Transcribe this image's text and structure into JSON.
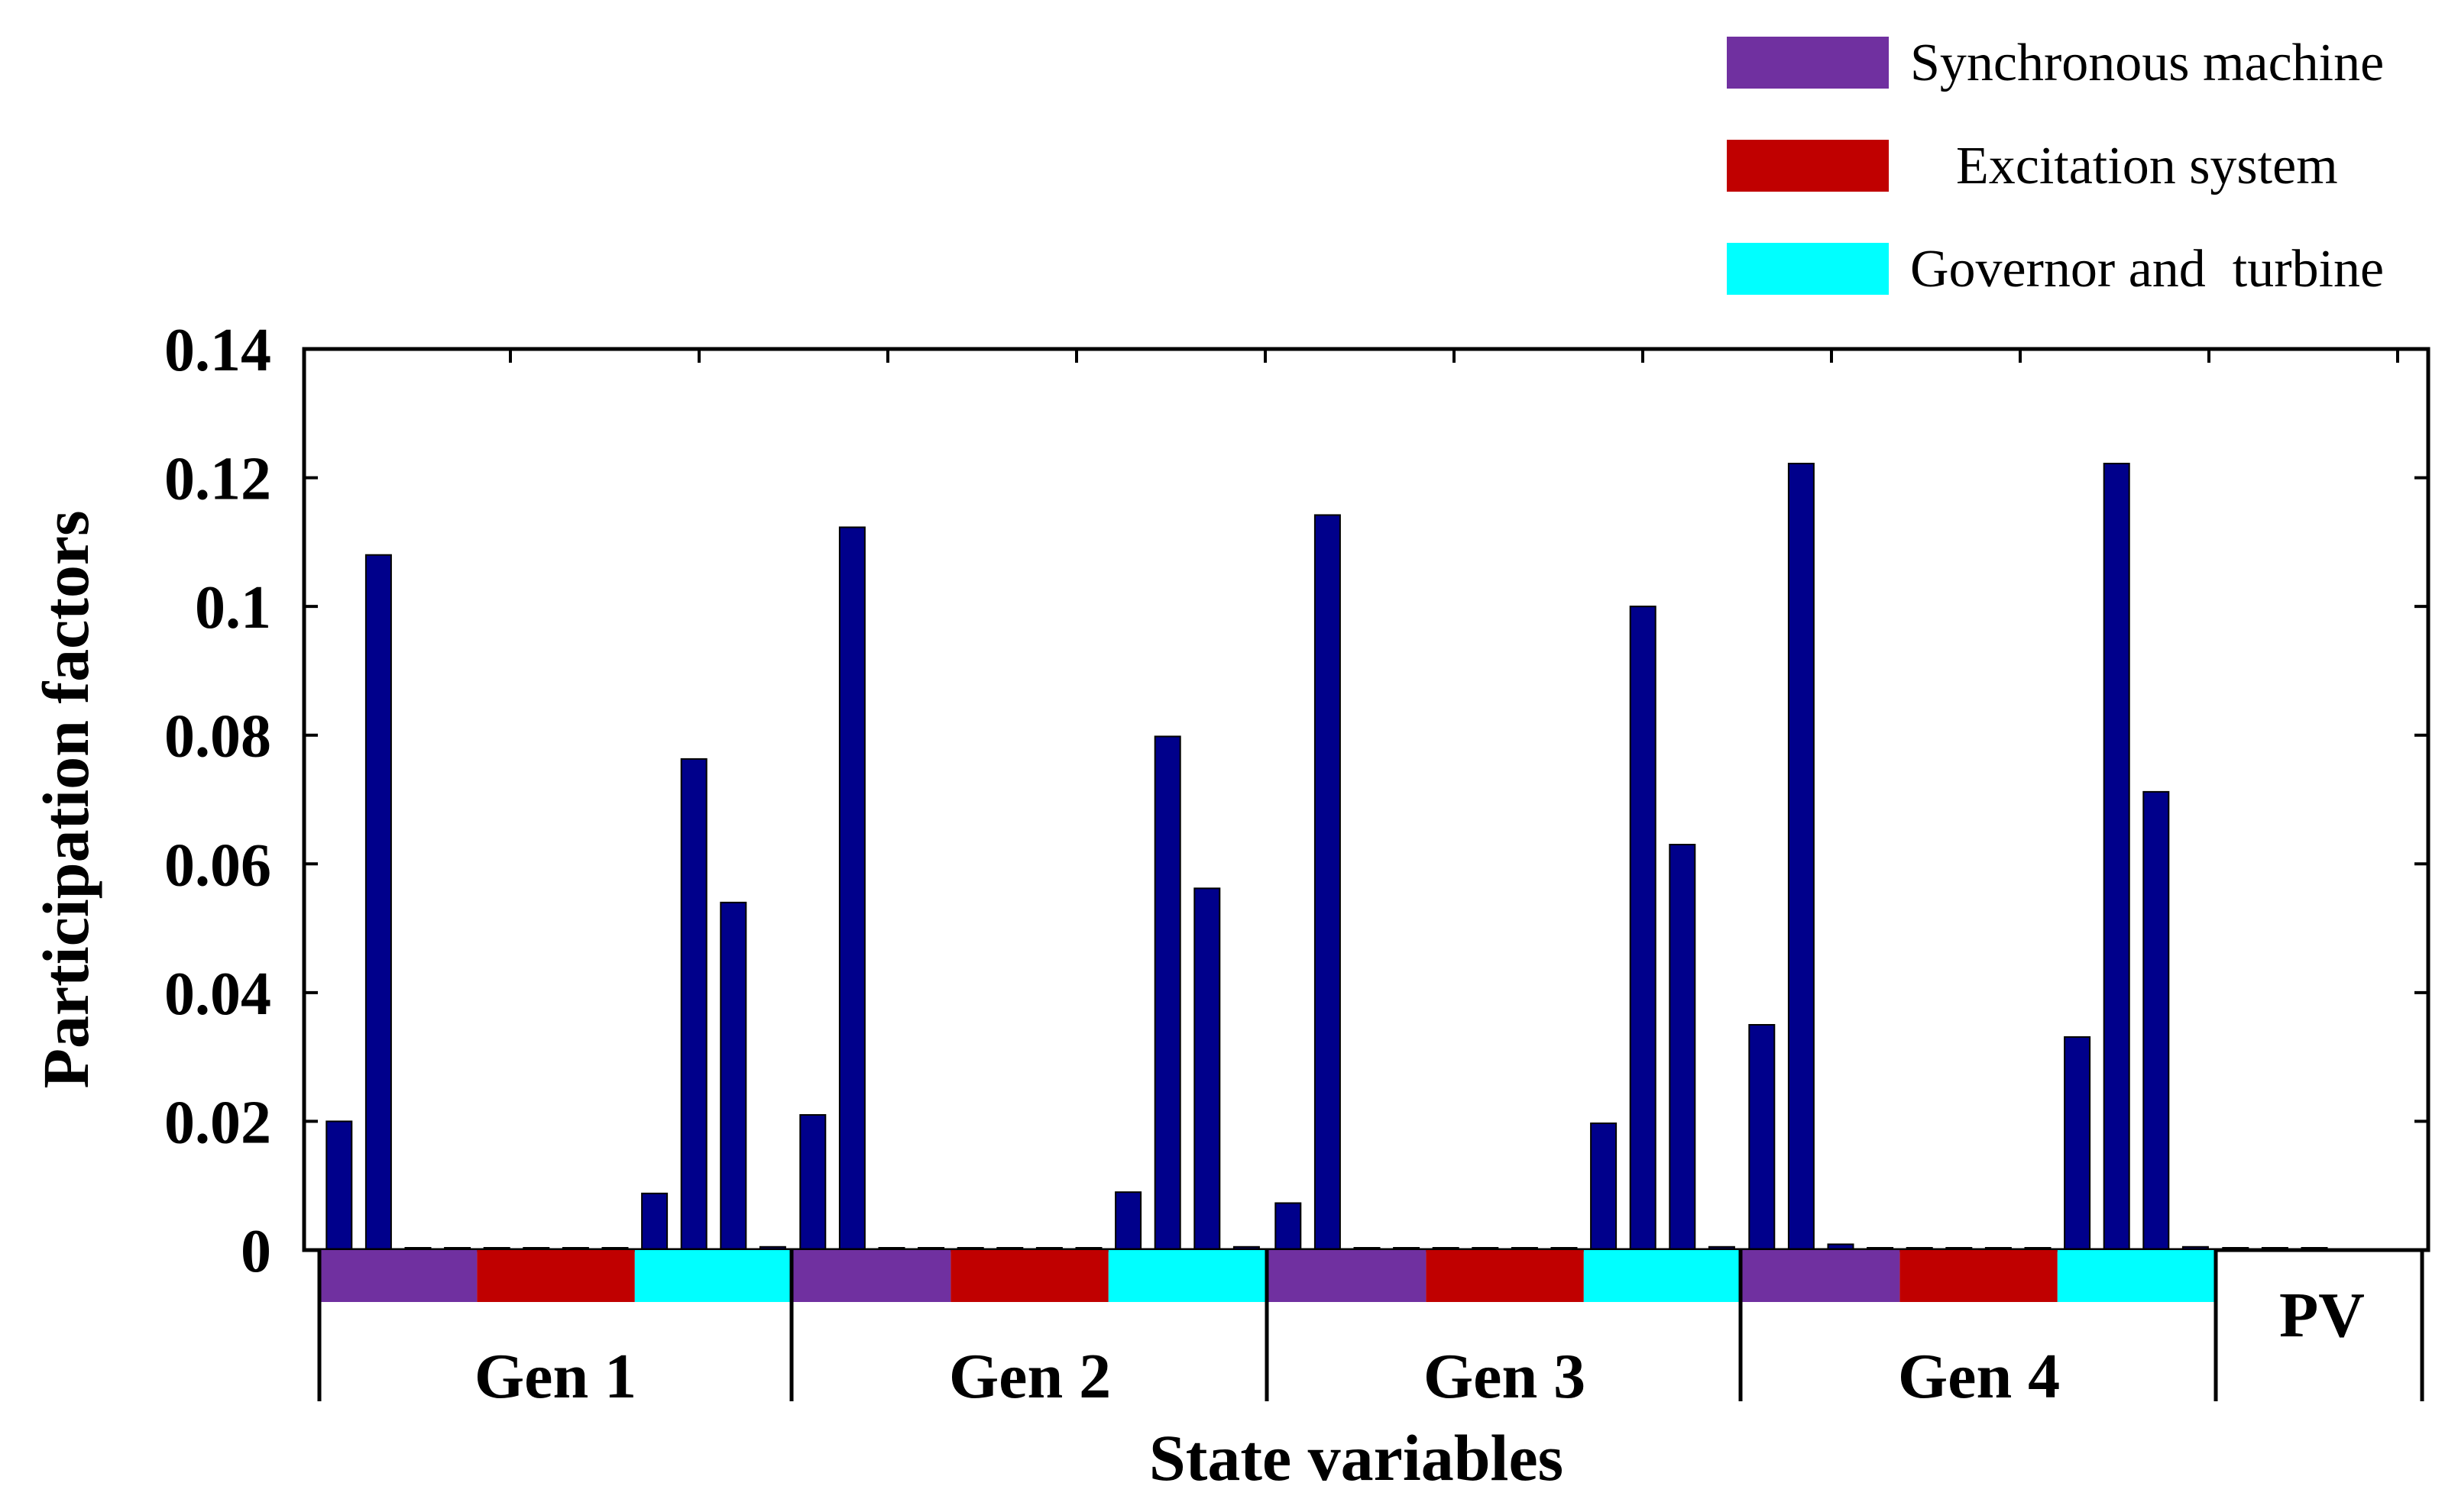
{
  "chart_data": {
    "type": "bar",
    "title": "",
    "xlabel": "State variables",
    "ylabel": "Participation factors",
    "ylim": [
      0,
      0.14
    ],
    "yticks": [
      0,
      0.02,
      0.04,
      0.06,
      0.08,
      0.1,
      0.12,
      0.14
    ],
    "ytick_labels": [
      "0",
      "0.02",
      "0.04",
      "0.06",
      "0.08",
      "0.1",
      "0.12",
      "0.14"
    ],
    "bar_color": "#00008b",
    "groups": [
      {
        "label": "Gen 1",
        "values": [
          0.02,
          0.108,
          0,
          0,
          0,
          0,
          0,
          0,
          0.0088,
          0.0763,
          0.054,
          0.0005
        ]
      },
      {
        "label": "Gen 2",
        "values": [
          0.021,
          0.1123,
          0,
          0,
          0,
          0,
          0,
          0,
          0.009,
          0.0798,
          0.0562,
          0.0005
        ]
      },
      {
        "label": "Gen 3",
        "values": [
          0.0073,
          0.1142,
          0,
          0,
          0,
          0,
          0,
          0,
          0.0197,
          0.1,
          0.063,
          0.0005
        ]
      },
      {
        "label": "Gen 4",
        "values": [
          0.035,
          0.1222,
          0.0009,
          0,
          0,
          0,
          0,
          0,
          0.0331,
          0.1222,
          0.0712,
          0.0005
        ]
      },
      {
        "label": "PV",
        "values": [
          0.0002,
          0.0002,
          0
        ]
      }
    ],
    "subsystems": [
      {
        "name": "Synchronous machine",
        "color": "#7030a0",
        "count": 4
      },
      {
        "name": "Excitation system",
        "color": "#c00000",
        "count": 4
      },
      {
        "name": "Governor and  turbine",
        "color": "#00ffff",
        "count": 4
      }
    ],
    "legend": [
      {
        "label": "Synchronous machine",
        "color": "#7030a0"
      },
      {
        "label": "Excitation system",
        "color": "#c00000"
      },
      {
        "label": "Governor and  turbine",
        "color": "#00ffff"
      }
    ],
    "legend_position": "top-right",
    "grid": false
  }
}
